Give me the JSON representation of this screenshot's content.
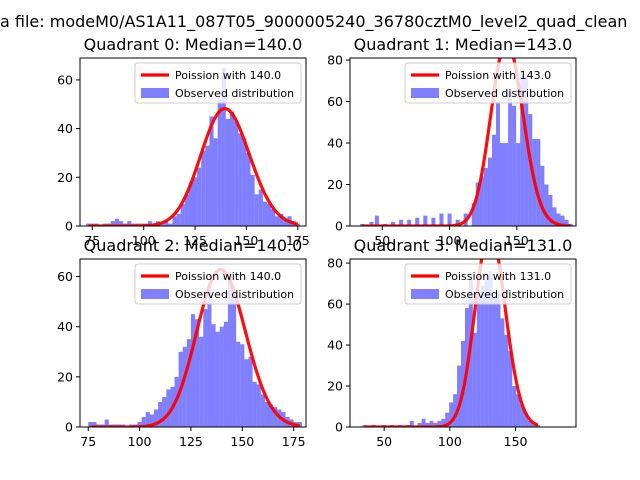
{
  "suptitle": "a file: modeM0/AS1A11_087T05_9000005240_36780cztM0_level2_quad_clean",
  "chart_data": [
    {
      "type": "bar",
      "title": "Quadrant 0: Median=140.0",
      "median": 140.0,
      "xlim": [
        69,
        179
      ],
      "ylim": [
        0,
        69
      ],
      "xticks": [
        75,
        100,
        125,
        150,
        175
      ],
      "yticks": [
        0,
        20,
        40,
        60
      ],
      "bins": [
        [
          73,
          1
        ],
        [
          75,
          1
        ],
        [
          77,
          1
        ],
        [
          79,
          0
        ],
        [
          81,
          1
        ],
        [
          83,
          1
        ],
        [
          85,
          2
        ],
        [
          87,
          3
        ],
        [
          89,
          2
        ],
        [
          91,
          1
        ],
        [
          93,
          2
        ],
        [
          95,
          1
        ],
        [
          97,
          1
        ],
        [
          99,
          1
        ],
        [
          101,
          1
        ],
        [
          103,
          2
        ],
        [
          105,
          1
        ],
        [
          107,
          2
        ],
        [
          109,
          1
        ],
        [
          111,
          2
        ],
        [
          113,
          1
        ],
        [
          115,
          4
        ],
        [
          117,
          5
        ],
        [
          119,
          9
        ],
        [
          121,
          13
        ],
        [
          123,
          18
        ],
        [
          125,
          20
        ],
        [
          127,
          24
        ],
        [
          129,
          31
        ],
        [
          131,
          33
        ],
        [
          133,
          45
        ],
        [
          135,
          36
        ],
        [
          137,
          52
        ],
        [
          139,
          65
        ],
        [
          141,
          44
        ],
        [
          143,
          47
        ],
        [
          145,
          43
        ],
        [
          147,
          38
        ],
        [
          149,
          36
        ],
        [
          151,
          30
        ],
        [
          153,
          21
        ],
        [
          155,
          13
        ],
        [
          157,
          15
        ],
        [
          159,
          10
        ],
        [
          161,
          9
        ],
        [
          163,
          7
        ],
        [
          165,
          4
        ],
        [
          167,
          5
        ],
        [
          169,
          3
        ],
        [
          171,
          4
        ],
        [
          173,
          2
        ],
        [
          175,
          1
        ]
      ],
      "legend": [
        "Poission with 140.0",
        "Observed distribution"
      ]
    },
    {
      "type": "bar",
      "title": "Quadrant 1: Median=143.0",
      "median": 143.0,
      "xlim": [
        26,
        194
      ],
      "ylim": [
        0,
        81
      ],
      "xticks": [
        50,
        100,
        150
      ],
      "yticks": [
        0,
        20,
        40,
        60,
        80
      ],
      "bins": [
        [
          35,
          1
        ],
        [
          42,
          2
        ],
        [
          46,
          5
        ],
        [
          52,
          1
        ],
        [
          58,
          2
        ],
        [
          64,
          3
        ],
        [
          70,
          3
        ],
        [
          76,
          4
        ],
        [
          82,
          5
        ],
        [
          88,
          4
        ],
        [
          94,
          6
        ],
        [
          100,
          6
        ],
        [
          106,
          3
        ],
        [
          112,
          6
        ],
        [
          118,
          11
        ],
        [
          121,
          21
        ],
        [
          124,
          24
        ],
        [
          127,
          28
        ],
        [
          130,
          33
        ],
        [
          133,
          44
        ],
        [
          136,
          60
        ],
        [
          139,
          40
        ],
        [
          142,
          40
        ],
        [
          145,
          66
        ],
        [
          148,
          58
        ],
        [
          151,
          40
        ],
        [
          154,
          73
        ],
        [
          157,
          72
        ],
        [
          160,
          54
        ],
        [
          163,
          42
        ],
        [
          166,
          42
        ],
        [
          169,
          29
        ],
        [
          172,
          20
        ],
        [
          175,
          15
        ],
        [
          178,
          9
        ],
        [
          181,
          6
        ],
        [
          184,
          5
        ],
        [
          187,
          3
        ],
        [
          190,
          1
        ]
      ],
      "legend": [
        "Poission with 143.0",
        "Observed distribution"
      ]
    },
    {
      "type": "bar",
      "title": "Quadrant 2: Median=140.0",
      "median": 140.0,
      "xlim": [
        71,
        181
      ],
      "ylim": [
        0,
        67
      ],
      "xticks": [
        75,
        100,
        125,
        150,
        175
      ],
      "yticks": [
        0,
        20,
        40,
        60
      ],
      "bins": [
        [
          76,
          2
        ],
        [
          78,
          2
        ],
        [
          80,
          1
        ],
        [
          82,
          1
        ],
        [
          84,
          3
        ],
        [
          86,
          1
        ],
        [
          88,
          1
        ],
        [
          90,
          1
        ],
        [
          92,
          1
        ],
        [
          94,
          0
        ],
        [
          96,
          1
        ],
        [
          98,
          1
        ],
        [
          100,
          2
        ],
        [
          102,
          4
        ],
        [
          104,
          6
        ],
        [
          106,
          5
        ],
        [
          108,
          7
        ],
        [
          110,
          10
        ],
        [
          112,
          12
        ],
        [
          114,
          15
        ],
        [
          116,
          16
        ],
        [
          118,
          20
        ],
        [
          120,
          30
        ],
        [
          122,
          32
        ],
        [
          124,
          35
        ],
        [
          126,
          45
        ],
        [
          128,
          43
        ],
        [
          130,
          36
        ],
        [
          132,
          47
        ],
        [
          134,
          56
        ],
        [
          136,
          41
        ],
        [
          138,
          38
        ],
        [
          140,
          40
        ],
        [
          142,
          42
        ],
        [
          144,
          61
        ],
        [
          146,
          53
        ],
        [
          148,
          34
        ],
        [
          150,
          33
        ],
        [
          152,
          27
        ],
        [
          154,
          28
        ],
        [
          156,
          18
        ],
        [
          158,
          17
        ],
        [
          160,
          13
        ],
        [
          162,
          10
        ],
        [
          164,
          9
        ],
        [
          166,
          8
        ],
        [
          168,
          7
        ],
        [
          170,
          6
        ],
        [
          172,
          4
        ],
        [
          174,
          3
        ],
        [
          176,
          2
        ],
        [
          178,
          2
        ]
      ],
      "legend": [
        "Poission with 140.0",
        "Observed distribution"
      ]
    },
    {
      "type": "bar",
      "title": "Quadrant 3: Median=131.0",
      "median": 131.0,
      "xlim": [
        24,
        196
      ],
      "ylim": [
        0,
        82
      ],
      "xticks": [
        50,
        100,
        150
      ],
      "yticks": [
        0,
        20,
        40,
        60,
        80
      ],
      "bins": [
        [
          35,
          1
        ],
        [
          42,
          1
        ],
        [
          50,
          1
        ],
        [
          56,
          1
        ],
        [
          62,
          1
        ],
        [
          68,
          1
        ],
        [
          71,
          3
        ],
        [
          77,
          2
        ],
        [
          80,
          4
        ],
        [
          83,
          2
        ],
        [
          86,
          3
        ],
        [
          89,
          2
        ],
        [
          92,
          3
        ],
        [
          95,
          4
        ],
        [
          98,
          7
        ],
        [
          101,
          12
        ],
        [
          104,
          16
        ],
        [
          107,
          30
        ],
        [
          110,
          42
        ],
        [
          113,
          58
        ],
        [
          116,
          72
        ],
        [
          119,
          46
        ],
        [
          122,
          64
        ],
        [
          125,
          69
        ],
        [
          128,
          72
        ],
        [
          131,
          76
        ],
        [
          134,
          63
        ],
        [
          137,
          65
        ],
        [
          140,
          53
        ],
        [
          143,
          45
        ],
        [
          146,
          37
        ],
        [
          149,
          20
        ],
        [
          152,
          16
        ],
        [
          155,
          11
        ],
        [
          158,
          7
        ],
        [
          161,
          3
        ],
        [
          164,
          2
        ],
        [
          167,
          1
        ]
      ],
      "legend": [
        "Poission with 131.0",
        "Observed distribution"
      ]
    }
  ]
}
